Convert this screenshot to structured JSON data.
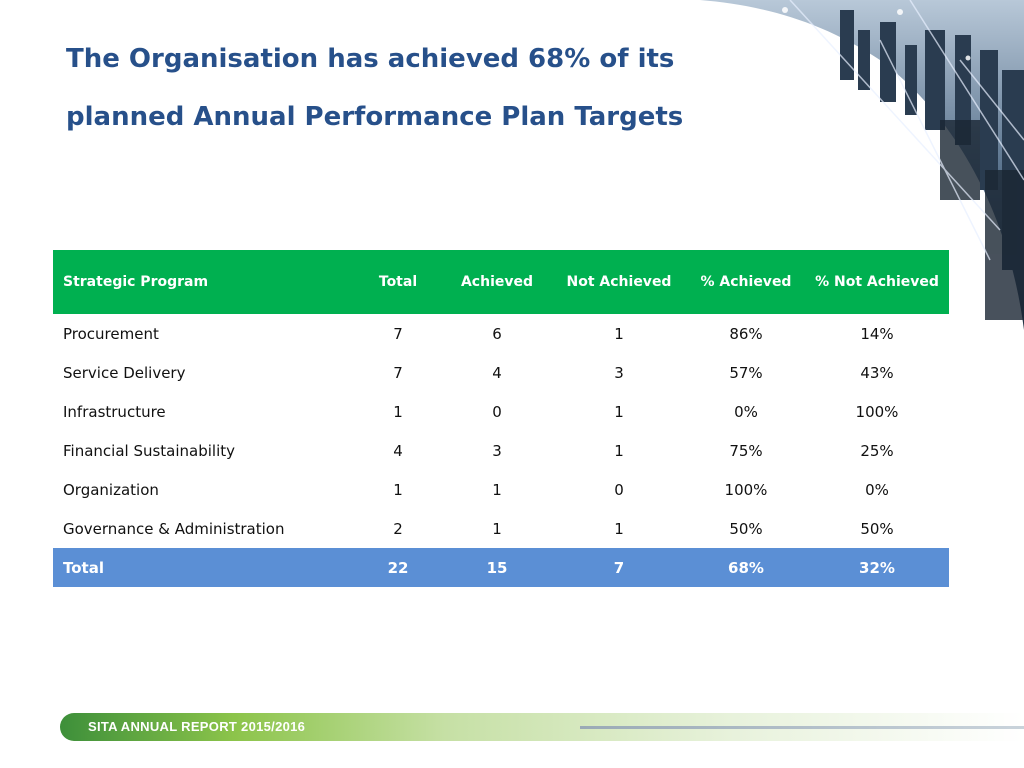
{
  "title": {
    "line1": "The Organisation has achieved 68% of its",
    "line2": "planned Annual Performance Plan Targets"
  },
  "table": {
    "headers": [
      "Strategic Program",
      "Total",
      "Achieved",
      "Not Achieved",
      "% Achieved",
      "% Not Achieved"
    ],
    "rows": [
      [
        "Procurement",
        "7",
        "6",
        "1",
        "86%",
        "14%"
      ],
      [
        "Service Delivery",
        "7",
        "4",
        "3",
        "57%",
        "43%"
      ],
      [
        "Infrastructure",
        "1",
        "0",
        "1",
        "0%",
        "100%"
      ],
      [
        "Financial Sustainability",
        "4",
        "3",
        "1",
        "75%",
        "25%"
      ],
      [
        "Organization",
        "1",
        "1",
        "0",
        "100%",
        "0%"
      ],
      [
        "Governance & Administration",
        "2",
        "1",
        "1",
        "50%",
        "50%"
      ]
    ],
    "total": [
      "Total",
      "22",
      "15",
      "7",
      "68%",
      "32%"
    ]
  },
  "footer": {
    "text": "SITA ANNUAL REPORT 2015/2016"
  },
  "colors": {
    "title": "#27508a",
    "header_bg": "#00b050",
    "total_bg": "#5b8fd5"
  }
}
